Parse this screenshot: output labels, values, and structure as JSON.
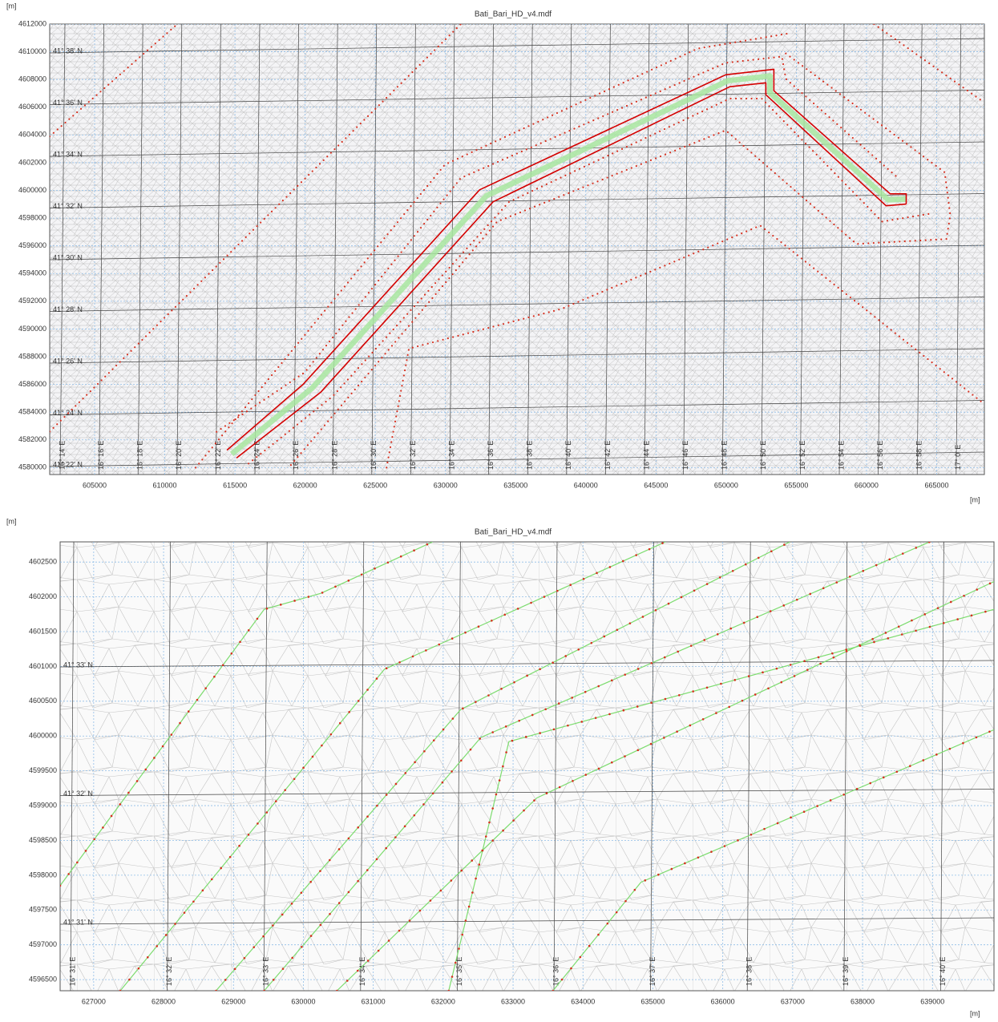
{
  "chart_data": [
    {
      "type": "line",
      "title": "Bati_Bari_HD_v4.mdf",
      "xlabel": "[m]",
      "ylabel": "[m]",
      "xlim": [
        601800,
        668400
      ],
      "ylim": [
        4579500,
        4612000
      ],
      "xticks": [
        605000,
        610000,
        615000,
        620000,
        625000,
        630000,
        635000,
        640000,
        645000,
        650000,
        655000,
        660000,
        665000
      ],
      "yticks": [
        4580000,
        4582000,
        4584000,
        4586000,
        4588000,
        4590000,
        4592000,
        4594000,
        4596000,
        4598000,
        4600000,
        4602000,
        4604000,
        4606000,
        4608000,
        4610000,
        4612000
      ],
      "grid": true,
      "lat_labels": [
        "41° 38' N",
        "41° 36' N",
        "41° 34' N",
        "41° 32' N",
        "41° 30' N",
        "41° 28' N",
        "41° 26' N",
        "41° 24' N",
        "41° 22' N"
      ],
      "lon_labels": [
        "16° 14' E",
        "16° 16' E",
        "16° 18' E",
        "16° 20' E",
        "16° 22' E",
        "16° 24' E",
        "16° 26' E",
        "16° 28' E",
        "16° 30' E",
        "16° 32' E",
        "16° 34' E",
        "16° 36' E",
        "16° 38' E",
        "16° 40' E",
        "16° 42' E",
        "16° 44' E",
        "16° 46' E",
        "16° 48' E",
        "16° 50' E",
        "16° 52' E",
        "16° 54' E",
        "16° 56' E",
        "16° 58' E",
        "17° 0' E"
      ],
      "series": [
        {
          "style": "dots",
          "color": "#d7301f",
          "x": [
            601800,
            610900
          ],
          "y": [
            4603900,
            4612000
          ]
        },
        {
          "style": "dots",
          "color": "#d7301f",
          "x": [
            601800,
            631100
          ],
          "y": [
            4582600,
            4612000
          ]
        },
        {
          "style": "dots",
          "color": "#d7301f",
          "x": [
            612200,
            629970,
            647970,
            654370
          ],
          "y": [
            4580000,
            4601870,
            4610230,
            4611310
          ]
        },
        {
          "style": "dots",
          "color": "#d7301f",
          "x": [
            654250,
            665570,
            665970,
            665690,
            659290,
            649970,
            633690,
            618830
          ],
          "y": [
            4609880,
            4601300,
            4598200,
            4596490,
            4596140,
            4604330,
            4597750,
            4580000
          ]
        },
        {
          "style": "dots",
          "color": "#d7301f",
          "x": [
            625800,
            627400,
            638260,
            652430,
            668400
          ],
          "y": [
            4580000,
            4588590,
            4591450,
            4597460,
            4584580
          ]
        },
        {
          "style": "dots",
          "color": "#d7301f",
          "x": [
            660540,
            668400
          ],
          "y": [
            4612000,
            4606330
          ]
        },
        {
          "style": "dots",
          "color": "#d7301f",
          "x": [
            613690,
            619970,
            631110,
            649970,
            653970,
            654250,
            662250
          ],
          "y": [
            4582580,
            4586870,
            4600900,
            4609200,
            4609650,
            4608050,
            4600900
          ]
        },
        {
          "style": "dots",
          "color": "#d7301f",
          "x": [
            615970,
            621970,
            634540,
            650260,
            652540,
            661110,
            664540
          ],
          "y": [
            4580290,
            4585150,
            4599180,
            4606620,
            4606620,
            4597750,
            4598320
          ]
        },
        {
          "style": "band",
          "color": "#a8e6a0",
          "x": [
            614770,
            620490,
            632920,
            650120,
            653120,
            653120,
            661550,
            662830
          ],
          "y": [
            4580980,
            4585730,
            4599610,
            4607910,
            4608250,
            4607050,
            4599320,
            4599380
          ]
        },
        {
          "style": "line",
          "color": "#d40000",
          "x": [
            614430,
            619860,
            632430,
            649970,
            653400,
            653400,
            661690,
            662830,
            662830
          ],
          "y": [
            4581260,
            4586010,
            4600040,
            4608340,
            4608740,
            4607190,
            4599750,
            4599750,
            4599010
          ]
        },
        {
          "style": "line",
          "color": "#d40000",
          "x": [
            615110,
            621110,
            633400,
            650260,
            652830,
            652830,
            661400,
            662830
          ],
          "y": [
            4580690,
            4585440,
            4599180,
            4607480,
            4607760,
            4606900,
            4598890,
            4599010
          ]
        }
      ]
    },
    {
      "type": "line",
      "title": "Bati_Bari_HD_v4.mdf",
      "xlabel": "[m]",
      "ylabel": "[m]",
      "xlim": [
        626520,
        639880
      ],
      "ylim": [
        4596340,
        4602790
      ],
      "xticks": [
        627000,
        628000,
        629000,
        630000,
        631000,
        632000,
        633000,
        634000,
        635000,
        636000,
        637000,
        638000,
        639000
      ],
      "yticks": [
        4596500,
        4597000,
        4597500,
        4598000,
        4598500,
        4599000,
        4599500,
        4600000,
        4600500,
        4601000,
        4601500,
        4602000,
        4602500
      ],
      "grid": true,
      "lat_labels": [
        "41° 33' N",
        "41° 32' N",
        "41° 31' N"
      ],
      "lon_labels": [
        "16° 31' E",
        "16° 32' E",
        "16° 33' E",
        "16° 34' E",
        "16° 35' E",
        "16° 36' E",
        "16° 37' E",
        "16° 38' E",
        "16° 39' E",
        "16° 40' E"
      ],
      "series": [
        {
          "style": "dots",
          "color": "#d7301f",
          "line_color": "#7ddc6f",
          "x": [
            626520,
            627950,
            629440,
            630250,
            631850
          ],
          "y": [
            4597850,
            4599800,
            4601820,
            4602050,
            4602790
          ]
        },
        {
          "style": "dots",
          "color": "#d7301f",
          "line_color": "#7ddc6f",
          "x": [
            627380,
            631160,
            635180
          ],
          "y": [
            4596340,
            4600960,
            4602790
          ]
        },
        {
          "style": "dots",
          "color": "#d7301f",
          "line_color": "#7ddc6f",
          "x": [
            628750,
            632250,
            636960
          ],
          "y": [
            4596340,
            4600380,
            4602790
          ]
        },
        {
          "style": "dots",
          "color": "#d7301f",
          "line_color": "#7ddc6f",
          "x": [
            629440,
            632540,
            638960
          ],
          "y": [
            4596340,
            4599980,
            4602790
          ]
        },
        {
          "style": "dots",
          "color": "#d7301f",
          "line_color": "#7ddc6f",
          "x": [
            630480,
            633340,
            639880
          ],
          "y": [
            4596340,
            4599110,
            4602220
          ]
        },
        {
          "style": "dots",
          "color": "#d7301f",
          "line_color": "#7ddc6f",
          "x": [
            632080,
            632940,
            639880
          ],
          "y": [
            4596340,
            4599920,
            4601820
          ]
        },
        {
          "style": "dots",
          "color": "#d7301f",
          "line_color": "#7ddc6f",
          "x": [
            633570,
            634830,
            639880
          ],
          "y": [
            4596340,
            4597900,
            4600090
          ]
        }
      ]
    }
  ]
}
